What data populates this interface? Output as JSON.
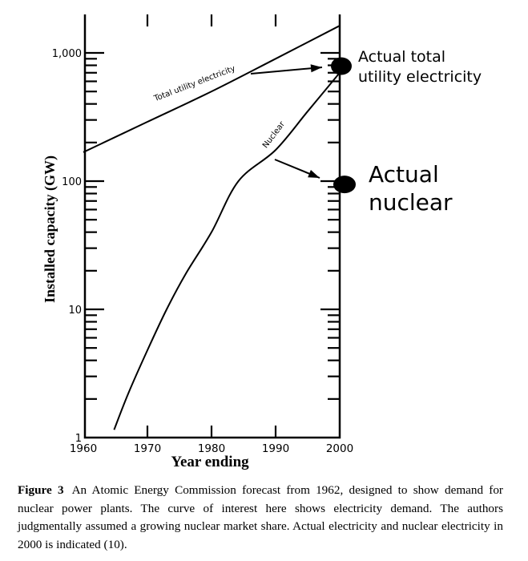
{
  "chart_data": {
    "type": "line",
    "title": "",
    "xlabel": "Year ending",
    "ylabel": "Installed capacity (GW)",
    "yscale": "log",
    "xlim": [
      1960,
      2000
    ],
    "ylim": [
      1,
      2000
    ],
    "x_ticks": [
      1960,
      1970,
      1980,
      1990,
      2000
    ],
    "x_tick_labels": [
      "1960",
      "1970",
      "1980",
      "1990",
      "2000"
    ],
    "y_ticks": [
      1,
      10,
      100,
      1000
    ],
    "y_tick_labels": [
      "1",
      "10",
      "100",
      "1,000"
    ],
    "grid": false,
    "series": [
      {
        "name": "Total utility electricity",
        "x": [
          1960,
          1970,
          1980,
          1990,
          2000
        ],
        "y": [
          168,
          290,
          500,
          900,
          1630
        ]
      },
      {
        "name": "Nuclear",
        "x": [
          1964.8,
          1967,
          1970,
          1973,
          1976,
          1980,
          1984.2,
          1990,
          1995,
          2000
        ],
        "y": [
          1.15,
          2.2,
          4.8,
          10,
          19,
          40,
          100,
          175,
          350,
          700
        ]
      }
    ],
    "points": [
      {
        "name": "Actual total utility electricity",
        "x": 2000,
        "y": 800
      },
      {
        "name": "Actual nuclear",
        "x": 2000,
        "y": 97
      }
    ],
    "annotations": [
      {
        "text_lines": [
          "Actual total",
          "utility electricity"
        ],
        "target": "Actual total utility electricity"
      },
      {
        "text_lines": [
          "Actual",
          "nuclear"
        ],
        "target": "Actual nuclear"
      }
    ]
  },
  "caption": {
    "label": "Figure 3",
    "text": "An Atomic Energy Commission forecast from 1962, designed to show demand for nuclear power plants. The curve of interest here shows electricity demand. The authors judgmentally assumed a growing nuclear market share. Actual electricity and nuclear electricity in 2000 is indicated (10)."
  }
}
